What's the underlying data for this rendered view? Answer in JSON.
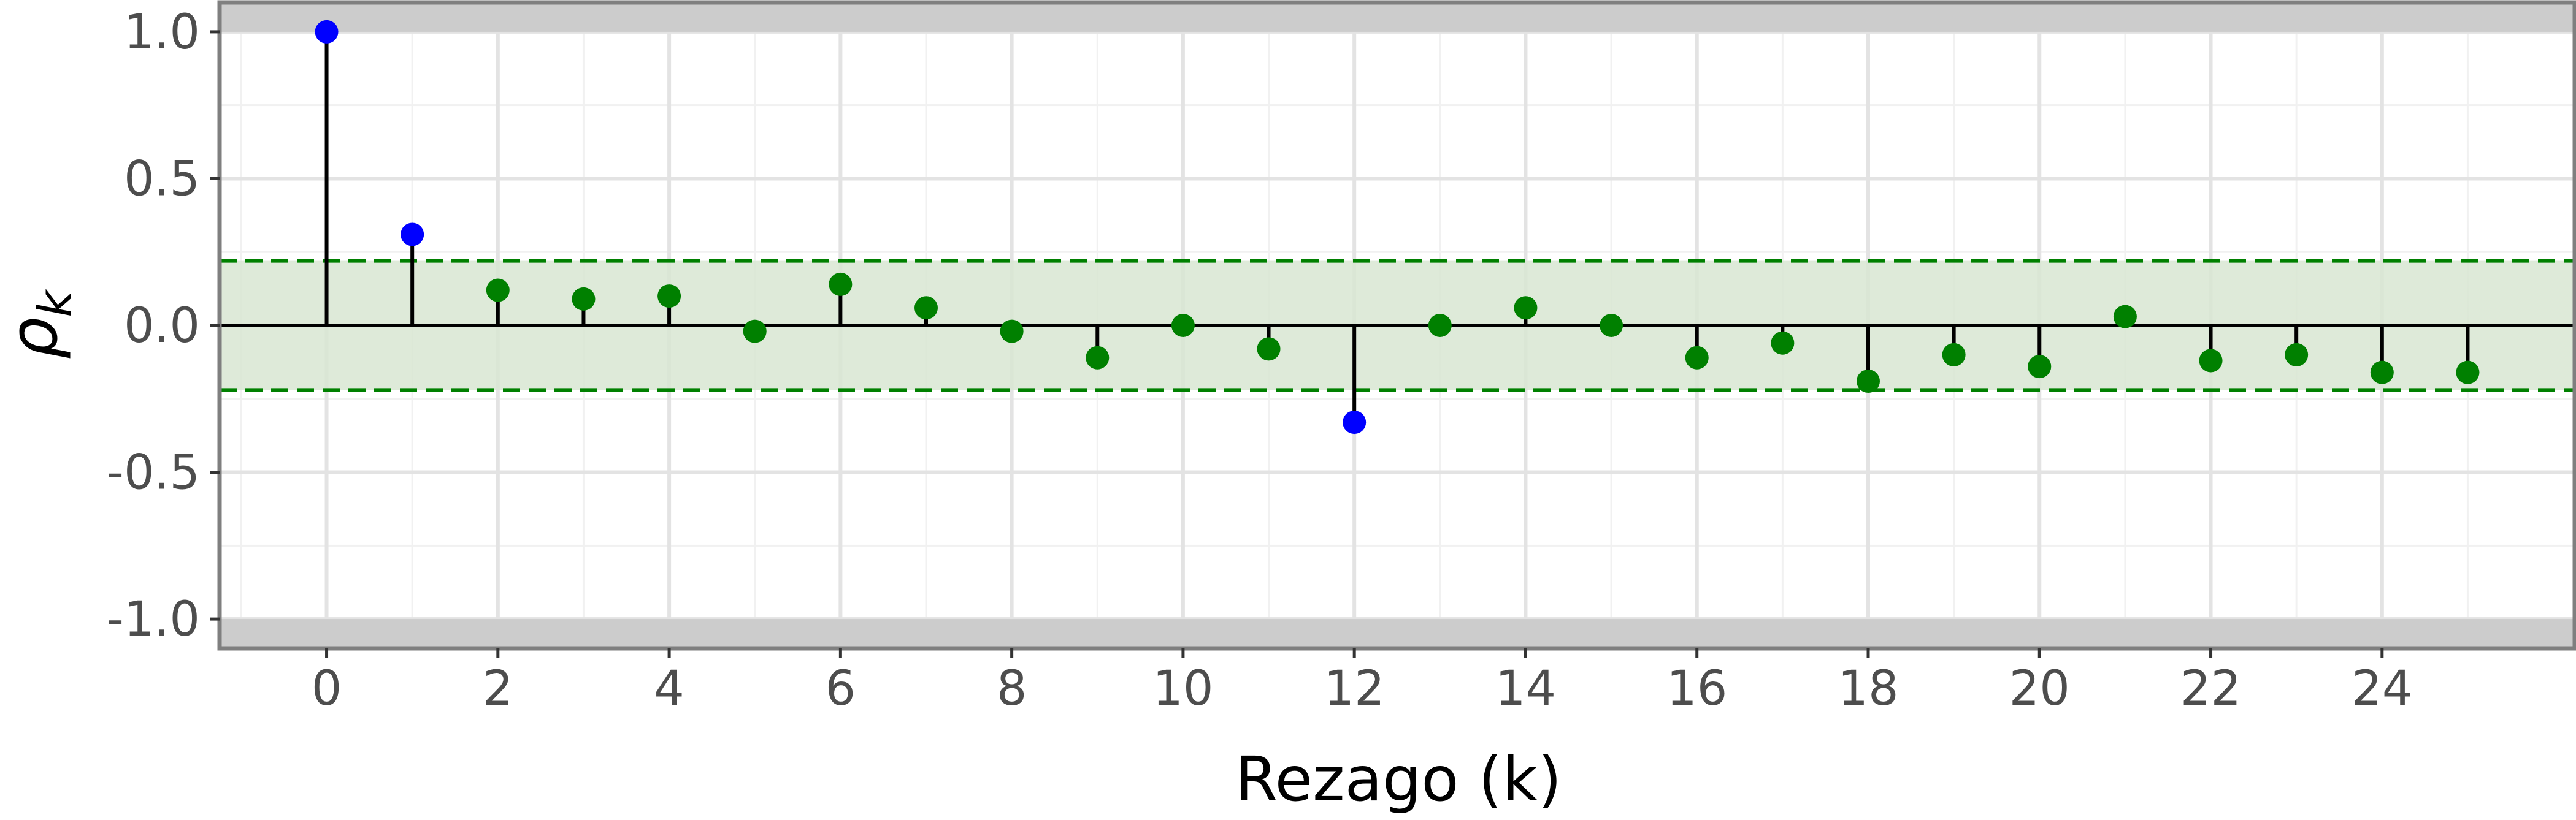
{
  "chart_data": {
    "type": "stem",
    "xlabel": "Rezago (k)",
    "ylabel_symbol": "ρ",
    "ylabel_subscript": "k",
    "xlim": [
      -1.25,
      26.25
    ],
    "ylim": [
      -1.1,
      1.1
    ],
    "x_ticks": [
      0,
      2,
      4,
      6,
      8,
      10,
      12,
      14,
      16,
      18,
      20,
      22,
      24
    ],
    "x_tick_labels": [
      "0",
      "2",
      "4",
      "6",
      "8",
      "10",
      "12",
      "14",
      "16",
      "18",
      "20",
      "22",
      "24"
    ],
    "y_ticks": [
      1.0,
      0.5,
      0.0,
      -0.5,
      -1.0
    ],
    "y_tick_labels": [
      "1.0",
      "0.5",
      "0.0",
      "-0.5",
      "-1.0"
    ],
    "confidence_band": [
      -0.22,
      0.22
    ],
    "grey_band_limit": 1.0,
    "grid": true,
    "colors": {
      "significant": "#0000ff",
      "not_significant": "#008000",
      "band_fill": "#d8e6d2",
      "band_line": "#008000",
      "outer_band": "#cccccc",
      "stem": "#000000",
      "grid": "#e3e3e3",
      "border": "#7f7f7f"
    },
    "lags": [
      0,
      1,
      2,
      3,
      4,
      5,
      6,
      7,
      8,
      9,
      10,
      11,
      12,
      13,
      14,
      15,
      16,
      17,
      18,
      19,
      20,
      21,
      22,
      23,
      24,
      25
    ],
    "acf": [
      1.0,
      0.31,
      0.12,
      0.09,
      0.1,
      -0.02,
      0.14,
      0.06,
      -0.02,
      -0.11,
      0.0,
      -0.08,
      -0.33,
      0.0,
      0.06,
      0.0,
      -0.11,
      -0.06,
      -0.19,
      -0.1,
      -0.14,
      0.03,
      -0.12,
      -0.1,
      -0.16,
      -0.16
    ],
    "significant": [
      true,
      true,
      false,
      false,
      false,
      false,
      false,
      false,
      false,
      false,
      false,
      false,
      true,
      false,
      false,
      false,
      false,
      false,
      false,
      false,
      false,
      false,
      false,
      false,
      false,
      false
    ]
  }
}
